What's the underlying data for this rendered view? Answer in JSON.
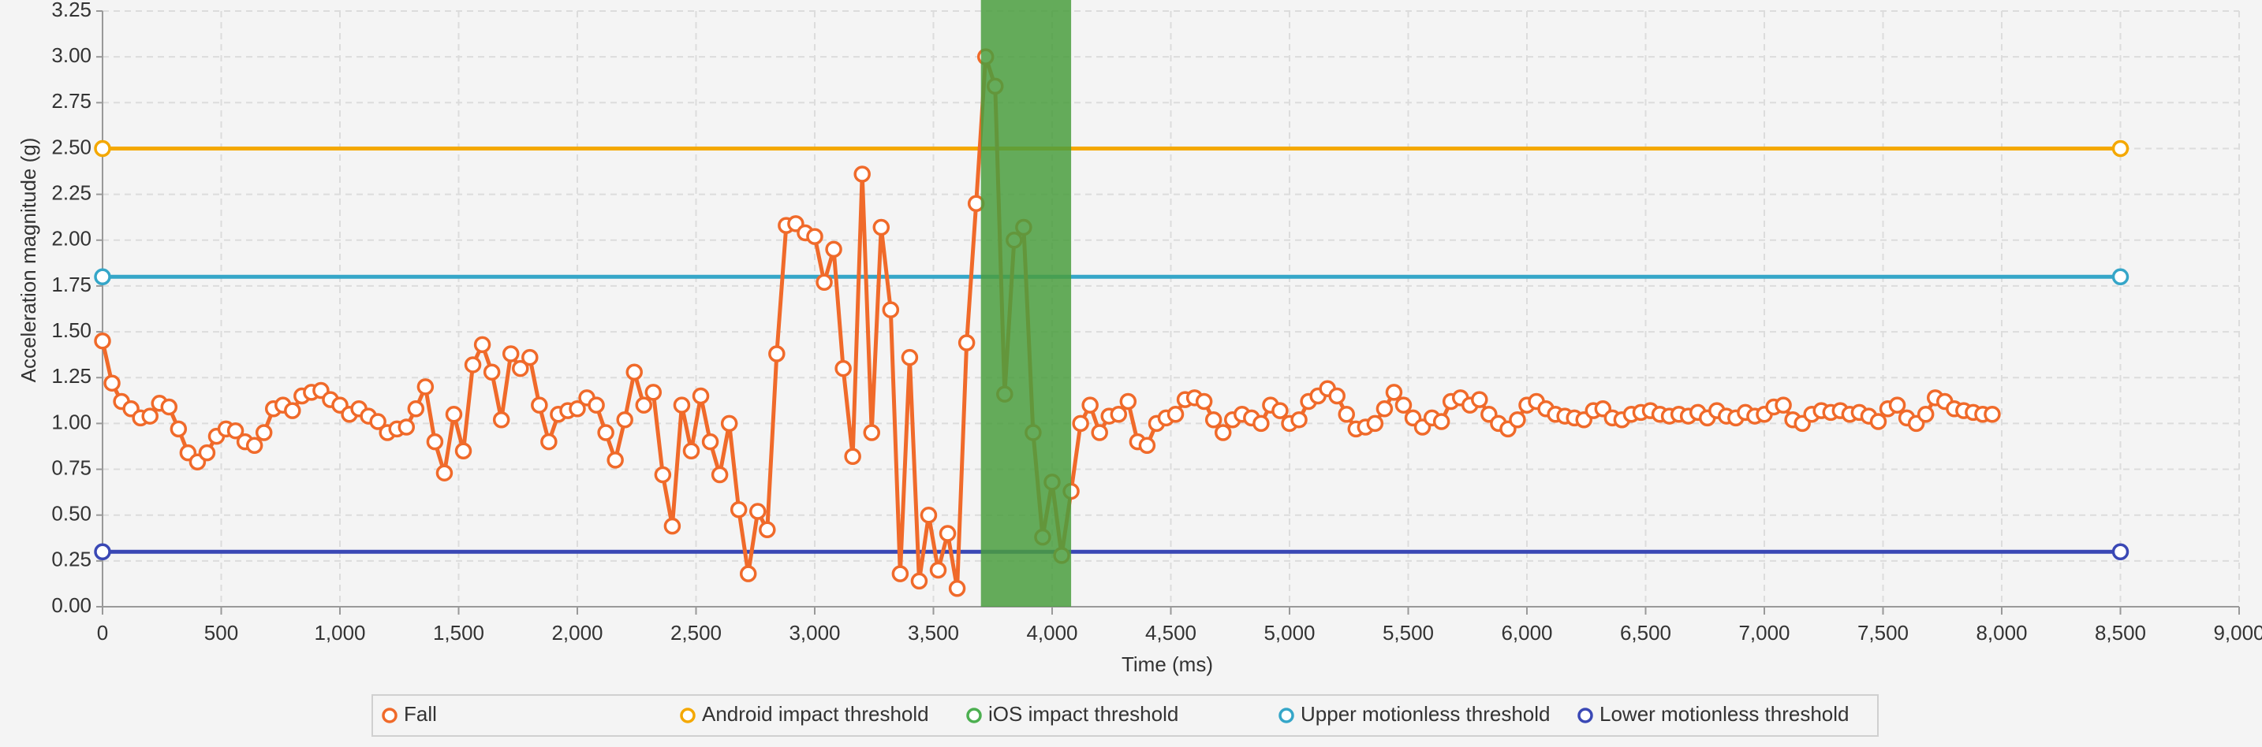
{
  "chart_data": {
    "type": "line",
    "x_label": "Time (ms)",
    "y_label": "Acceleration magnitude (g)",
    "xlim": [
      0,
      9000
    ],
    "ylim": [
      0,
      3.25
    ],
    "xticks": [
      0,
      500,
      {
        "value": 1000,
        "label": "1,000"
      },
      {
        "value": 1500,
        "label": "1,500"
      },
      {
        "value": 2000,
        "label": "2,000"
      },
      {
        "value": 2500,
        "label": "2,500"
      },
      {
        "value": 3000,
        "label": "3,000"
      },
      {
        "value": 3500,
        "label": "3,500"
      },
      {
        "value": 4000,
        "label": "4,000"
      },
      {
        "value": 4500,
        "label": "4,500"
      },
      {
        "value": 5000,
        "label": "5,000"
      },
      {
        "value": 5500,
        "label": "5,500"
      },
      {
        "value": 6000,
        "label": "6,000"
      },
      {
        "value": 6500,
        "label": "6,500"
      },
      {
        "value": 7000,
        "label": "7,000"
      },
      {
        "value": 7500,
        "label": "7,500"
      },
      {
        "value": 8000,
        "label": "8,000"
      },
      {
        "value": 8500,
        "label": "8,500"
      },
      {
        "value": 9000,
        "label": "9,000"
      }
    ],
    "yticks": [
      {
        "value": 0,
        "label": "0.00"
      },
      {
        "value": 0.25,
        "label": "0.25"
      },
      {
        "value": 0.5,
        "label": "0.50"
      },
      {
        "value": 0.75,
        "label": "0.75"
      },
      {
        "value": 1,
        "label": "1.00"
      },
      {
        "value": 1.25,
        "label": "1.25"
      },
      {
        "value": 1.5,
        "label": "1.50"
      },
      {
        "value": 1.75,
        "label": "1.75"
      },
      {
        "value": 2,
        "label": "2.00"
      },
      {
        "value": 2.25,
        "label": "2.25"
      },
      {
        "value": 2.5,
        "label": "2.50"
      },
      {
        "value": 2.75,
        "label": "2.75"
      },
      {
        "value": 3,
        "label": "3.00"
      },
      {
        "value": 3.25,
        "label": "3.25"
      }
    ],
    "grid": true,
    "legend": "bottom",
    "highlight": {
      "x": [
        3700,
        4080
      ],
      "color": "#4a9e3e"
    },
    "series": [
      {
        "name": "Fall",
        "color": "#f06a2a",
        "x": [
          0,
          40,
          80,
          120,
          160,
          200,
          240,
          280,
          320,
          360,
          400,
          440,
          480,
          520,
          560,
          600,
          640,
          680,
          720,
          760,
          800,
          840,
          880,
          920,
          960,
          1000,
          1040,
          1080,
          1120,
          1160,
          1200,
          1240,
          1280,
          1320,
          1360,
          1400,
          1440,
          1480,
          1520,
          1560,
          1600,
          1640,
          1680,
          1720,
          1760,
          1800,
          1840,
          1880,
          1920,
          1960,
          2000,
          2040,
          2080,
          2120,
          2160,
          2200,
          2240,
          2280,
          2320,
          2360,
          2400,
          2440,
          2480,
          2520,
          2560,
          2600,
          2640,
          2680,
          2720,
          2760,
          2800,
          2840,
          2880,
          2920,
          2960,
          3000,
          3040,
          3080,
          3120,
          3160,
          3200,
          3240,
          3280,
          3320,
          3360,
          3400,
          3440,
          3480,
          3520,
          3560,
          3600,
          3640,
          3680,
          3720,
          3760,
          3800,
          3840,
          3880,
          3920,
          3960,
          4000,
          4040,
          4080,
          4120,
          4160,
          4200,
          4240,
          4280,
          4320,
          4360,
          4400,
          4440,
          4480,
          4520,
          4560,
          4600,
          4640,
          4680,
          4720,
          4760,
          4800,
          4840,
          4880,
          4920,
          4960,
          5000,
          5040,
          5080,
          5120,
          5160,
          5200,
          5240,
          5280,
          5320,
          5360,
          5400,
          5440,
          5480,
          5520,
          5560,
          5600,
          5640,
          5680,
          5720,
          5760,
          5800,
          5840,
          5880,
          5920,
          5960,
          6000,
          6040,
          6080,
          6120,
          6160,
          6200,
          6240,
          6280,
          6320,
          6360,
          6400,
          6440,
          6480,
          6520,
          6560,
          6600,
          6640,
          6680,
          6720,
          6760,
          6800,
          6840,
          6880,
          6920,
          6960,
          7000,
          7040,
          7080,
          7120,
          7160,
          7200,
          7240,
          7280,
          7320,
          7360,
          7400,
          7440,
          7480,
          7520,
          7560,
          7600,
          7640,
          7680,
          7720,
          7760,
          7800,
          7840,
          7880,
          7920,
          7960
        ],
        "values": [
          1.45,
          1.22,
          1.12,
          1.08,
          1.03,
          1.04,
          1.11,
          1.09,
          0.97,
          0.84,
          0.79,
          0.84,
          0.93,
          0.97,
          0.96,
          0.9,
          0.88,
          0.95,
          1.08,
          1.1,
          1.07,
          1.15,
          1.17,
          1.18,
          1.13,
          1.1,
          1.05,
          1.08,
          1.04,
          1.01,
          0.95,
          0.97,
          0.98,
          1.08,
          1.2,
          0.9,
          0.73,
          1.05,
          0.85,
          1.32,
          1.43,
          1.28,
          1.02,
          1.38,
          1.3,
          1.36,
          1.1,
          0.9,
          1.05,
          1.07,
          1.08,
          1.14,
          1.1,
          0.95,
          0.8,
          1.02,
          1.28,
          1.1,
          1.17,
          0.72,
          0.44,
          1.1,
          0.85,
          1.15,
          0.9,
          0.72,
          1.0,
          0.53,
          0.18,
          0.52,
          0.42,
          1.38,
          2.08,
          2.09,
          2.04,
          2.02,
          1.77,
          1.95,
          1.3,
          0.82,
          2.36,
          0.95,
          2.07,
          1.62,
          0.18,
          1.36,
          0.14,
          0.5,
          0.2,
          0.4,
          0.1,
          1.44,
          2.2,
          3.0,
          2.84,
          1.16,
          2.0,
          2.07,
          0.95,
          0.38,
          0.68,
          0.28,
          0.63,
          1.0,
          1.1,
          0.95,
          1.04,
          1.05,
          1.12,
          0.9,
          0.88,
          1.0,
          1.03,
          1.05,
          1.13,
          1.14,
          1.12,
          1.02,
          0.95,
          1.02,
          1.05,
          1.03,
          1.0,
          1.1,
          1.07,
          1.0,
          1.02,
          1.12,
          1.15,
          1.19,
          1.15,
          1.05,
          0.97,
          0.98,
          1.0,
          1.08,
          1.17,
          1.1,
          1.03,
          0.98,
          1.03,
          1.01,
          1.12,
          1.14,
          1.1,
          1.13,
          1.05,
          1.0,
          0.97,
          1.02,
          1.1,
          1.12,
          1.08,
          1.05,
          1.04,
          1.03,
          1.02,
          1.07,
          1.08,
          1.03,
          1.02,
          1.05,
          1.06,
          1.07,
          1.05,
          1.04,
          1.05,
          1.04,
          1.06,
          1.03,
          1.07,
          1.04,
          1.03,
          1.06,
          1.04,
          1.05,
          1.09,
          1.1,
          1.02,
          1.0,
          1.05,
          1.07,
          1.06,
          1.07,
          1.05,
          1.06,
          1.04,
          1.01,
          1.08,
          1.1,
          1.03,
          1.0,
          1.05,
          1.14,
          1.12,
          1.08,
          1.07,
          1.06,
          1.05,
          1.05
        ]
      },
      {
        "name": "Android impact threshold",
        "color": "#f4a800",
        "x": [
          0,
          8500
        ],
        "values": [
          2.5,
          2.5
        ]
      },
      {
        "name": "iOS impact threshold",
        "color": "#4caf50",
        "x": [],
        "values": []
      },
      {
        "name": "Upper motionless threshold",
        "color": "#35a6c8",
        "x": [
          0,
          8500
        ],
        "values": [
          1.8,
          1.8
        ]
      },
      {
        "name": "Lower motionless threshold",
        "color": "#3a48b5",
        "x": [
          0,
          8500
        ],
        "values": [
          0.3,
          0.3
        ]
      }
    ]
  }
}
